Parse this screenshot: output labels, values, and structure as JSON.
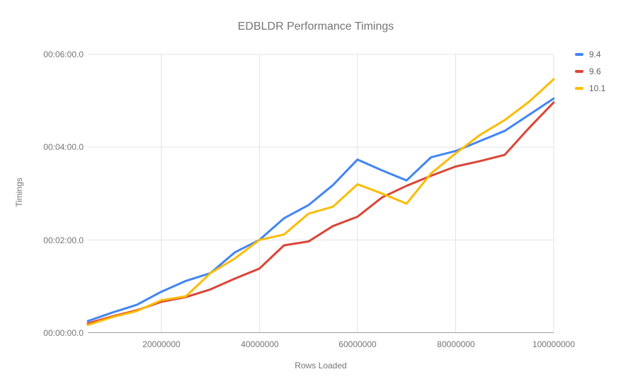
{
  "title": "EDBLDR Performance Timings",
  "chart_data": {
    "type": "line",
    "title": "EDBLDR Performance Timings",
    "xlabel": "Rows Loaded",
    "ylabel": "Timings",
    "x_rows_loaded": [
      5000000,
      10000000,
      15000000,
      20000000,
      25000000,
      30000000,
      35000000,
      40000000,
      45000000,
      50000000,
      55000000,
      60000000,
      65000000,
      70000000,
      75000000,
      80000000,
      85000000,
      90000000,
      95000000,
      100000000
    ],
    "series": [
      {
        "name": "9.4",
        "color": "#4285f4",
        "values_seconds": [
          15,
          26,
          36,
          53,
          67,
          77,
          104,
          120,
          148,
          165,
          191,
          224,
          210,
          197,
          227,
          235,
          248,
          261,
          282,
          303
        ]
      },
      {
        "name": "9.6",
        "color": "#db4437",
        "values_seconds": [
          12,
          21,
          29,
          40,
          46,
          56,
          70,
          83,
          113,
          118,
          138,
          150,
          175,
          190,
          203,
          215,
          222,
          230,
          265,
          298
        ]
      },
      {
        "name": "10.1",
        "color": "#fbbc04",
        "values_seconds": [
          10,
          20,
          28,
          42,
          47,
          77,
          96,
          120,
          127,
          154,
          163,
          192,
          180,
          167,
          206,
          232,
          256,
          275,
          299,
          328
        ]
      }
    ],
    "y_ticks": [
      "00:00:00.0",
      "00:02:00.0",
      "00:04:00.0",
      "00:06:00.0"
    ],
    "y_tick_seconds": [
      0,
      120,
      240,
      360
    ],
    "x_ticks": [
      "20000000",
      "40000000",
      "60000000",
      "80000000",
      "100000000"
    ],
    "x_tick_values": [
      20000000,
      40000000,
      60000000,
      80000000,
      100000000
    ],
    "x_range": [
      5000000,
      100000000
    ],
    "y_range_seconds": [
      0,
      360
    ],
    "grid": true,
    "legend_position": "right",
    "gridline_color": "#e3e3e3",
    "baseline_color": "#9e9e9e"
  }
}
